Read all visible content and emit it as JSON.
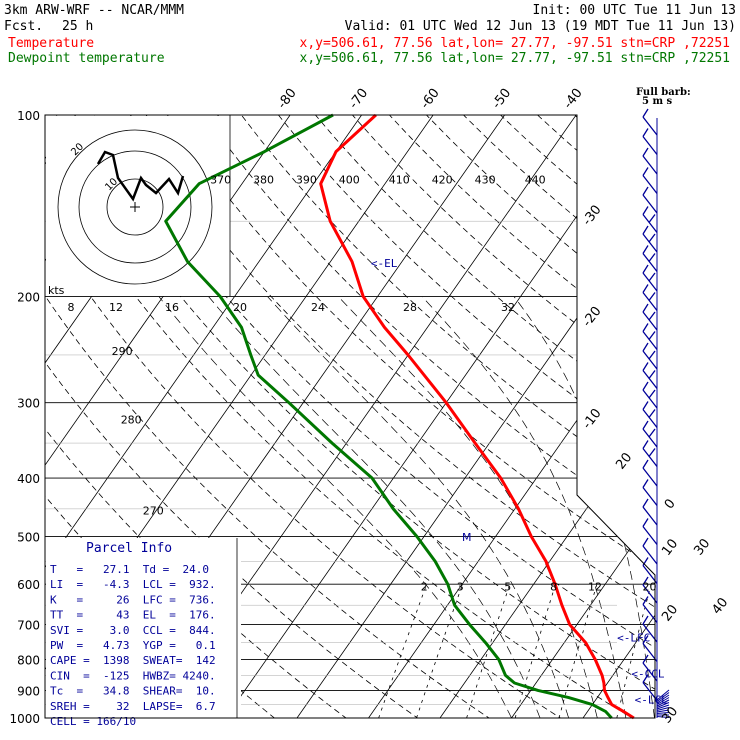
{
  "header": {
    "model": "3km ARW-WRF -- NCAR/MMM",
    "init": "Init: 00 UTC Tue 11 Jun 13",
    "fcst_label": "Fcst.",
    "fcst_value": "25 h",
    "valid": "Valid: 01 UTC Wed 12 Jun 13 (19 MDT Tue 11 Jun 13)",
    "temp_label": "Temperature",
    "dew_label": "Dewpoint temperature",
    "location_info": "x,y=506.61, 77.56   lat,lon= 27.77, -97.51   stn=CRP ,72251"
  },
  "colors": {
    "temperature": "#ff0000",
    "dewpoint": "#007700",
    "annotation": "#000099",
    "axis": "#000000"
  },
  "panel_text": {
    "parcel_title": "Parcel Info",
    "kts": "kts",
    "wind_key_line1": "Full barb:",
    "wind_key_line2": "5 m s",
    "el": "<-EL",
    "lfc": "<-LFC",
    "ccl": "<-CCL",
    "lcl": "<-LCL",
    "m_mark": "M"
  },
  "parcel_info": [
    "T   =   27.1  Td =  24.0",
    "LI  =   -4.3  LCL =  932.",
    "K   =     26  LFC =  736.",
    "TT  =     43  EL  =  176.",
    "SVI =    3.0  CCL =  844.",
    "PW  =   4.73  YGP =   0.1",
    "CAPE =  1398  SWEAT=  142",
    "CIN  =  -125  HWBZ= 4240.",
    "Tc  =   34.8  SHEAR=  10.",
    "SREH =    32  LAPSE=  6.7",
    "CELL = 166/10"
  ],
  "chart_data": {
    "type": "skew-t log-p sounding",
    "pressure_axis": {
      "ticks": [
        100,
        200,
        300,
        400,
        500,
        600,
        700,
        800,
        900,
        1000
      ],
      "range_hpa": [
        100,
        1000
      ]
    },
    "temperature_ticks": [
      -80,
      -70,
      -60,
      -50,
      -40,
      -30,
      -20,
      -10,
      0,
      10,
      20,
      30,
      40
    ],
    "theta_labels": [
      {
        "value": "370",
        "p": 130,
        "t": -83
      },
      {
        "value": "380",
        "p": 130,
        "t": -77
      },
      {
        "value": "390",
        "p": 130,
        "t": -71
      },
      {
        "value": "400",
        "p": 130,
        "t": -65
      },
      {
        "value": "410",
        "p": 130,
        "t": -58
      },
      {
        "value": "420",
        "p": 130,
        "t": -52
      },
      {
        "value": "430",
        "p": 130,
        "t": -46
      },
      {
        "value": "440",
        "p": 130,
        "t": -39
      },
      {
        "value": "290",
        "p": 250,
        "t": -80
      },
      {
        "value": "280",
        "p": 325,
        "t": -72
      },
      {
        "value": "270",
        "p": 460,
        "t": -60
      }
    ],
    "mixing_ratio_labels": [
      "2",
      "3",
      "5",
      "8",
      "12",
      "20"
    ],
    "hodograph_labels": [
      "20",
      "10"
    ],
    "hodograph_speed_ticks": [
      "8",
      "12",
      "16",
      "20",
      "24",
      "28",
      "32"
    ],
    "temperature": [
      {
        "p": 1000,
        "t": 27.1
      },
      {
        "p": 975,
        "t": 25.0
      },
      {
        "p": 950,
        "t": 22.7
      },
      {
        "p": 925,
        "t": 21.5
      },
      {
        "p": 900,
        "t": 20.3
      },
      {
        "p": 875,
        "t": 19.5
      },
      {
        "p": 850,
        "t": 18.5
      },
      {
        "p": 800,
        "t": 16.0
      },
      {
        "p": 750,
        "t": 13.0
      },
      {
        "p": 700,
        "t": 9.0
      },
      {
        "p": 650,
        "t": 6.0
      },
      {
        "p": 600,
        "t": 3.0
      },
      {
        "p": 550,
        "t": -0.5
      },
      {
        "p": 500,
        "t": -5.0
      },
      {
        "p": 450,
        "t": -9.5
      },
      {
        "p": 400,
        "t": -15.0
      },
      {
        "p": 350,
        "t": -22.0
      },
      {
        "p": 300,
        "t": -30.0
      },
      {
        "p": 250,
        "t": -40.0
      },
      {
        "p": 225,
        "t": -46.0
      },
      {
        "p": 200,
        "t": -52.0
      },
      {
        "p": 175,
        "t": -57.0
      },
      {
        "p": 150,
        "t": -64.0
      },
      {
        "p": 130,
        "t": -69.0
      },
      {
        "p": 115,
        "t": -70.0
      },
      {
        "p": 100,
        "t": -68.0
      }
    ],
    "dewpoint": [
      {
        "p": 1000,
        "t": 24.0
      },
      {
        "p": 975,
        "t": 22.5
      },
      {
        "p": 950,
        "t": 20.0
      },
      {
        "p": 925,
        "t": 16.0
      },
      {
        "p": 900,
        "t": 11.0
      },
      {
        "p": 875,
        "t": 7.0
      },
      {
        "p": 850,
        "t": 5.0
      },
      {
        "p": 800,
        "t": 2.5
      },
      {
        "p": 750,
        "t": -1.0
      },
      {
        "p": 700,
        "t": -5.0
      },
      {
        "p": 650,
        "t": -9.0
      },
      {
        "p": 600,
        "t": -12.0
      },
      {
        "p": 550,
        "t": -16.0
      },
      {
        "p": 500,
        "t": -21.0
      },
      {
        "p": 450,
        "t": -27.0
      },
      {
        "p": 400,
        "t": -33.0
      },
      {
        "p": 350,
        "t": -42.0
      },
      {
        "p": 300,
        "t": -52.0
      },
      {
        "p": 270,
        "t": -59.0
      },
      {
        "p": 250,
        "t": -62.0
      },
      {
        "p": 225,
        "t": -66.0
      },
      {
        "p": 200,
        "t": -72.0
      },
      {
        "p": 175,
        "t": -80.0
      },
      {
        "p": 150,
        "t": -87.0
      },
      {
        "p": 130,
        "t": -86.0
      },
      {
        "p": 115,
        "t": -80.0
      },
      {
        "p": 100,
        "t": -74.0
      }
    ],
    "level_markers": [
      {
        "label": "EL",
        "p": 176
      },
      {
        "label": "LFC",
        "p": 736
      },
      {
        "label": "CCL",
        "p": 844
      },
      {
        "label": "LCL",
        "p": 932
      }
    ],
    "wind_speed_labels": [
      "10",
      "20",
      "30",
      "40"
    ]
  }
}
